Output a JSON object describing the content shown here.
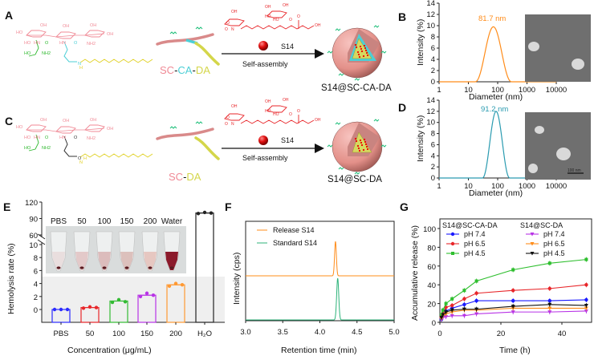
{
  "panels": {
    "A": {
      "label": "A",
      "polymer_parts": [
        "SC",
        "-",
        "CA",
        "-",
        "DA"
      ],
      "drug": "S14",
      "process": "Self-assembly",
      "product": "S14@SC-CA-DA"
    },
    "C": {
      "label": "C",
      "polymer_parts": [
        "SC",
        "-",
        "DA"
      ],
      "drug": "S14",
      "process": "Self-assembly",
      "product": "S14@SC-DA"
    },
    "B": {
      "label": "B"
    },
    "D": {
      "label": "D",
      "scale_bar": "100 nm"
    },
    "E": {
      "label": "E",
      "photo_labels": [
        "PBS",
        "50",
        "100",
        "150",
        "200",
        "Water"
      ]
    },
    "F": {
      "label": "F"
    },
    "G": {
      "label": "G"
    }
  },
  "structure_atoms": {
    "A": [
      "HO",
      "OH",
      "OH",
      "OH",
      "OH",
      "HO",
      "HN",
      "O",
      "HN",
      "O",
      "HO",
      "NH2",
      "NH2",
      "N",
      "H"
    ],
    "C": [
      "HO",
      "OH",
      "OH",
      "OH",
      "OH",
      "HO",
      "HN",
      "O",
      "HN",
      "O",
      "HO",
      "NH2",
      "NH2",
      "O",
      "N",
      "H"
    ],
    "S14": [
      "OH",
      "OH",
      "HO",
      "HO",
      "OH",
      "O",
      "O",
      "N",
      "OH",
      "O",
      "O"
    ]
  },
  "colors": {
    "sc": "#f08a96",
    "ca": "#4ccfd6",
    "da": "#d4d64a",
    "serine": "#2db82d",
    "drug": "#e8262a",
    "peg": "#1fbf7a"
  },
  "chart_data": [
    {
      "id": "B",
      "type": "line",
      "title": "",
      "annotation": "81.7 nm",
      "xlabel": "Diameter (nm)",
      "ylabel": "Intensity (%)",
      "xscale": "log",
      "xlim": [
        1,
        10000
      ],
      "ylim": [
        0,
        14
      ],
      "xticks": [
        "1",
        "10",
        "100",
        "1000",
        "10000"
      ],
      "yticks": [
        "0",
        "2",
        "4",
        "6",
        "8",
        "10",
        "12",
        "14"
      ],
      "peak": {
        "center": 70,
        "height": 9.8,
        "range": [
          17,
          300
        ]
      },
      "color": "#ff8c1a"
    },
    {
      "id": "D",
      "type": "line",
      "title": "",
      "annotation": "91.2 nm",
      "xlabel": "Diameter (nm)",
      "ylabel": "Intensity (%)",
      "xscale": "log",
      "xlim": [
        1,
        10000
      ],
      "ylim": [
        0,
        14
      ],
      "xticks": [
        "1",
        "10",
        "100",
        "1000",
        "10000"
      ],
      "yticks": [
        "0",
        "2",
        "4",
        "6",
        "8",
        "10",
        "12",
        "14"
      ],
      "peak": {
        "center": 88,
        "height": 12,
        "range": [
          30,
          260
        ]
      },
      "color": "#2a9bb0"
    },
    {
      "id": "E",
      "type": "bar",
      "xlabel": "Concentration (μg/mL)",
      "ylabel": "Hemolysis rate (%)",
      "categories": [
        "PBS",
        "50",
        "100",
        "150",
        "200",
        "H₂O"
      ],
      "values": [
        0,
        0.3,
        1.3,
        2.2,
        3.8,
        100
      ],
      "points": [
        [
          0,
          0,
          0
        ],
        [
          0.2,
          0.4,
          0.3
        ],
        [
          1.1,
          1.5,
          1.2
        ],
        [
          2.0,
          2.5,
          2.2
        ],
        [
          3.6,
          4.0,
          3.8
        ],
        [
          99,
          101,
          100
        ]
      ],
      "colors": [
        "#2b2bff",
        "#e8262a",
        "#33bb33",
        "#b833e6",
        "#ff9933",
        "#222222"
      ],
      "yticks": [
        "0",
        "2",
        "4",
        "6",
        "8",
        "10",
        "60",
        "90",
        "120"
      ],
      "axis_break": [
        10,
        60
      ],
      "ylim": [
        0,
        120
      ]
    },
    {
      "id": "F",
      "type": "line",
      "xlabel": "Retention time (min)",
      "ylabel": "Intensity (cps)",
      "xlim": [
        3.0,
        5.0
      ],
      "xticks": [
        "3.0",
        "3.5",
        "4.0",
        "4.5",
        "5.0"
      ],
      "series": [
        {
          "name": "Release S14",
          "peak_time": 4.21,
          "color": "#ff8c1a"
        },
        {
          "name": "Standard S14",
          "peak_time": 4.24,
          "color": "#2db37a"
        }
      ]
    },
    {
      "id": "G",
      "type": "line",
      "xlabel": "Time (h)",
      "ylabel": "Accumulative release (%)",
      "xlim": [
        0,
        48
      ],
      "ylim": [
        0,
        100
      ],
      "xticks": [
        "0",
        "20",
        "40"
      ],
      "yticks": [
        "0",
        "20",
        "40",
        "60",
        "80",
        "100"
      ],
      "legend_groups": [
        "S14@SC-CA-DA",
        "S14@SC-DA"
      ],
      "legend": "top-left",
      "x": [
        0.5,
        1,
        2,
        4,
        8,
        12,
        24,
        36,
        48
      ],
      "series": [
        {
          "group": 0,
          "name": "pH 7.4",
          "color": "#1a1aff",
          "marker": "circle",
          "values": [
            3,
            8,
            12,
            15,
            19,
            23,
            23,
            23,
            24
          ]
        },
        {
          "group": 0,
          "name": "pH 6.5",
          "color": "#e8262a",
          "marker": "circle",
          "values": [
            6,
            10,
            16,
            18,
            25,
            31,
            34,
            36,
            40
          ]
        },
        {
          "group": 0,
          "name": "pH 4.5",
          "color": "#2fbf2f",
          "marker": "square",
          "values": [
            8,
            13,
            20,
            25,
            34,
            44,
            56,
            63,
            67
          ]
        },
        {
          "group": 1,
          "name": "pH 7.4",
          "color": "#b833e6",
          "marker": "tri",
          "values": [
            3,
            5,
            6,
            7,
            7,
            9,
            11,
            11,
            12
          ]
        },
        {
          "group": 1,
          "name": "pH 6.5",
          "color": "#ff8c1a",
          "marker": "tri",
          "values": [
            4,
            7,
            9,
            11,
            13,
            13,
            15,
            15,
            15
          ]
        },
        {
          "group": 1,
          "name": "pH 4.5",
          "color": "#111111",
          "marker": "tri",
          "values": [
            5,
            8,
            11,
            13,
            14,
            14,
            17,
            19,
            18
          ]
        }
      ]
    }
  ]
}
